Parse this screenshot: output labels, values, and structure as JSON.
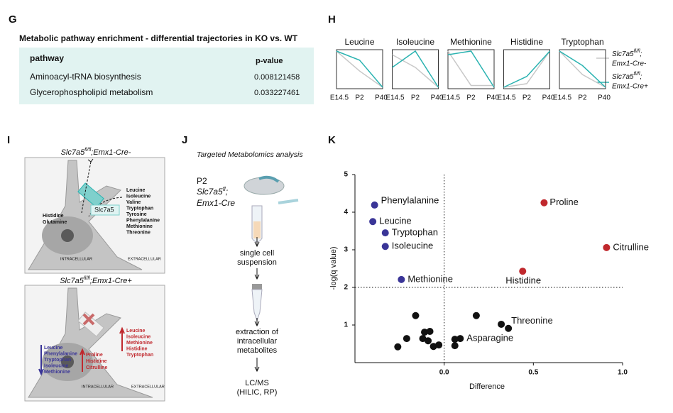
{
  "panel_labels": [
    "G",
    "H",
    "I",
    "J",
    "K"
  ],
  "table": {
    "title": "Metabolic pathway enrichment - differential trajectories in KO vs. WT",
    "header": [
      "pathway",
      "p-value"
    ],
    "rows": [
      [
        "Aminoacyl-tRNA biosynthesis",
        "0.008121458"
      ],
      [
        "Glycerophospholipid metabolism",
        "0.033227461"
      ]
    ]
  },
  "trajectory_legend": [
    {
      "gene": "Slc7a5",
      "allele": "fl/fl",
      "rest": ";",
      "line2": "Emx1-Cre-",
      "color": "#c8c8c8"
    },
    {
      "gene": "Slc7a5",
      "allele": "fl/fl",
      "rest": ";",
      "line2": "Emx1-Cre+",
      "color": "#2bb3b1"
    }
  ],
  "chart_data": [
    {
      "type": "line",
      "title": "Leucine",
      "categories": [
        "E14.5",
        "P2",
        "P40"
      ],
      "ylim": [
        0,
        1
      ],
      "series": [
        {
          "color": "#c8c8c8",
          "values": [
            1,
            0.45,
            0
          ]
        },
        {
          "color": "#2bb3b1",
          "values": [
            1,
            0.75,
            0
          ]
        }
      ]
    },
    {
      "type": "line",
      "title": "Isoleucine",
      "categories": [
        "E14.5",
        "P2",
        "P40"
      ],
      "ylim": [
        0,
        1
      ],
      "series": [
        {
          "color": "#c8c8c8",
          "values": [
            0.9,
            0.55,
            0
          ]
        },
        {
          "color": "#2bb3b1",
          "values": [
            0.55,
            1,
            0
          ]
        }
      ]
    },
    {
      "type": "line",
      "title": "Methionine",
      "categories": [
        "E14.5",
        "P2",
        "P40"
      ],
      "ylim": [
        0,
        1
      ],
      "series": [
        {
          "color": "#c8c8c8",
          "values": [
            1,
            0.05,
            0.05
          ]
        },
        {
          "color": "#2bb3b1",
          "values": [
            0.9,
            1,
            0
          ]
        }
      ]
    },
    {
      "type": "line",
      "title": "Histidine",
      "categories": [
        "E14.5",
        "P2",
        "P40"
      ],
      "ylim": [
        0,
        1
      ],
      "series": [
        {
          "color": "#c8c8c8",
          "values": [
            0,
            0.1,
            1
          ]
        },
        {
          "color": "#2bb3b1",
          "values": [
            0,
            0.3,
            1
          ]
        }
      ]
    },
    {
      "type": "line",
      "title": "Tryptophan",
      "categories": [
        "E14.5",
        "P2",
        "P40"
      ],
      "ylim": [
        0,
        1
      ],
      "series": [
        {
          "color": "#c8c8c8",
          "values": [
            1,
            0.35,
            0
          ]
        },
        {
          "color": "#2bb3b1",
          "values": [
            1,
            0.6,
            0
          ]
        }
      ]
    },
    {
      "type": "scatter",
      "x_label": "Difference",
      "y_label": "-log(q value)",
      "xlim": [
        -0.5,
        1.0
      ],
      "ylim": [
        0,
        5
      ],
      "xticks": [
        {
          "value": 0,
          "label": "0.0"
        },
        0.5,
        {
          "value": 1,
          "label": "1.0"
        }
      ],
      "yticks": [
        1,
        2,
        3,
        4,
        5
      ],
      "vline": 0,
      "hline": 2,
      "series": [
        {
          "color": "#3a3597",
          "x": [
            -0.39,
            -0.4,
            -0.33,
            -0.33,
            -0.24
          ],
          "values": [
            4.19,
            3.75,
            3.45,
            3.09,
            2.21
          ],
          "labels": [
            "Phenylalanine",
            "Leucine",
            "Tryptophan",
            "Isoleucine",
            "Methionine"
          ]
        },
        {
          "color": "#c0282d",
          "x": [
            0.56,
            0.91,
            0.44
          ],
          "values": [
            4.25,
            3.06,
            2.43
          ],
          "labels": [
            "Proline",
            "Citrulline",
            "Histidine"
          ]
        },
        {
          "color": "#111111",
          "x": [
            0.36,
            0.09,
            0.32,
            0.06,
            0.06,
            -0.16,
            0.18,
            -0.21,
            -0.26,
            -0.11,
            -0.08,
            -0.12,
            -0.09,
            -0.06,
            -0.03
          ],
          "values": [
            0.91,
            0.64,
            1.02,
            0.62,
            0.45,
            1.25,
            1.25,
            0.64,
            0.42,
            0.81,
            0.83,
            0.64,
            0.58,
            0.43,
            0.47
          ],
          "labels": [
            "Threonine",
            "Asparagine",
            null,
            null,
            null,
            null,
            null,
            null,
            null,
            null,
            null,
            null,
            null,
            null,
            null
          ]
        }
      ]
    }
  ],
  "diagram_i": {
    "control": {
      "genotype": {
        "gene": "Slc7a5",
        "allele": "fl/fl",
        "rest": ";Emx1-Cre-"
      },
      "transported": [
        "Leucine",
        "Isoleucine",
        "Valine",
        "Tryptophan",
        "Tyrosine",
        "Phenylalanine",
        "Methionine",
        "Threonine"
      ],
      "other": [
        "Histidine",
        "Glutamine"
      ],
      "transporter": "Slc7a5",
      "inside": "INTRACELLULAR",
      "outside": "EXTRACELLULAR"
    },
    "knockout": {
      "genotype": {
        "gene": "Slc7a5",
        "allele": "fl/fl",
        "rest": ";Emx1-Cre+"
      },
      "up_outside": [
        "Leucine",
        "Isoleucine",
        "Methionine",
        "Histidine",
        "Tryptophan"
      ],
      "down_inside": [
        "Leucine",
        "Phenylalanine",
        "Tryptophan",
        "Isoleucine",
        "Methionine"
      ],
      "up_inside": [
        "Proline",
        "Histidine",
        "Citrulline"
      ],
      "inside": "INTRACELLULAR",
      "outside": "EXTRACELLULAR"
    }
  },
  "diagram_j": {
    "title": "Targeted Metabolomics analysis",
    "age": "P2",
    "genotype": {
      "gene": "Slc7a5",
      "allele": "fl",
      "rest": ";",
      "line2": "Emx1-Cre"
    },
    "steps": [
      [
        "single cell",
        "suspension"
      ],
      [
        "extraction of",
        "intracellular",
        "metabolites"
      ],
      [
        "LC/MS",
        "(HILIC, RP)"
      ]
    ]
  }
}
